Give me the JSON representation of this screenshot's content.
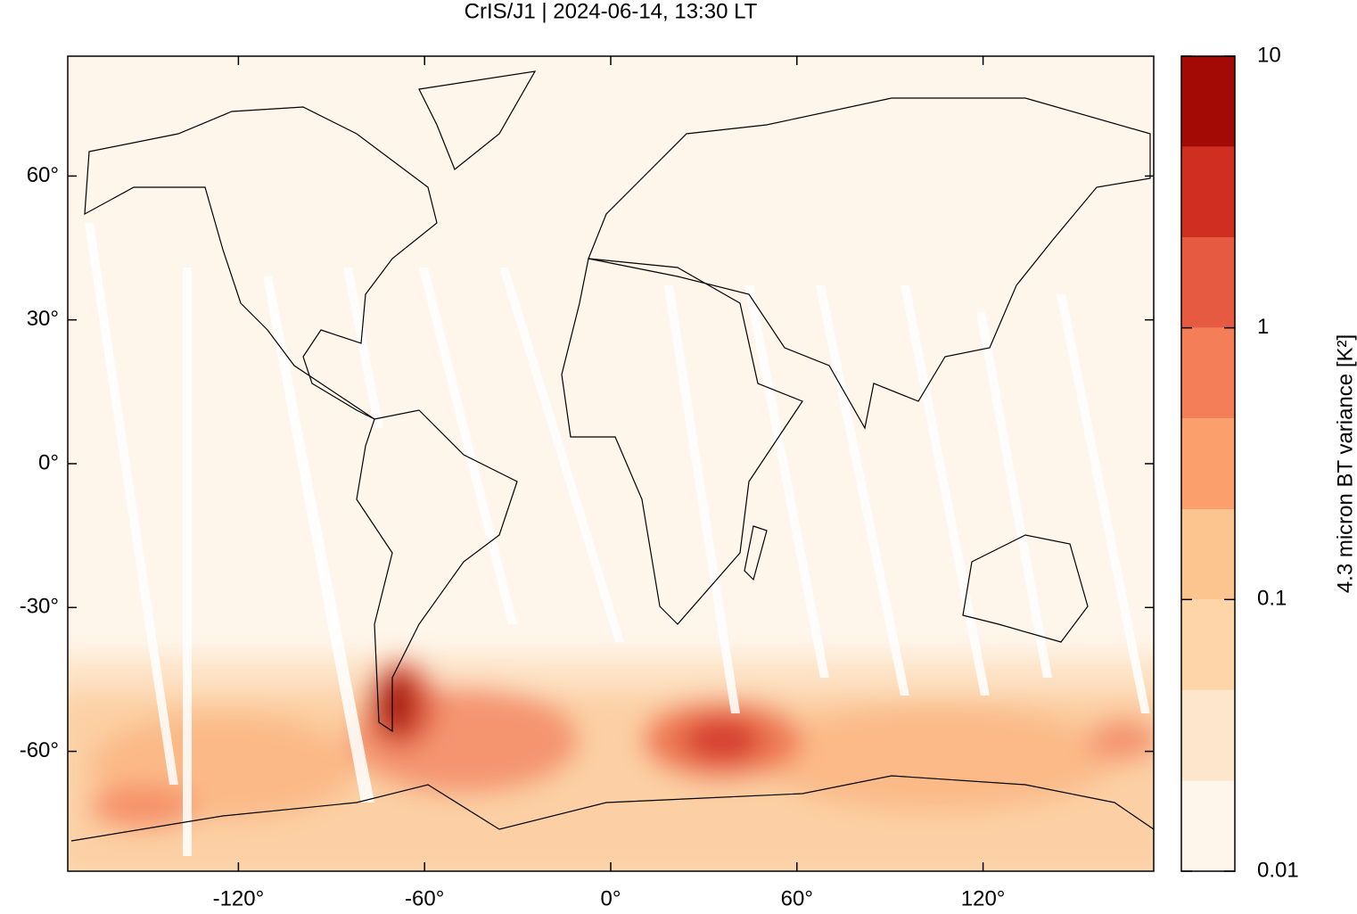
{
  "chart_data": {
    "type": "map",
    "title": "CrIS/J1 | 2024-06-14, 13:30 LT",
    "xlim": [
      -175,
      175
    ],
    "ylim": [
      -85,
      85
    ],
    "xticks": [
      {
        "value": -120,
        "label": "-120°"
      },
      {
        "value": -60,
        "label": "-60°"
      },
      {
        "value": 0,
        "label": "0°"
      },
      {
        "value": 60,
        "label": "60°"
      },
      {
        "value": 120,
        "label": "120°"
      }
    ],
    "yticks": [
      {
        "value": 60,
        "label": "60°"
      },
      {
        "value": 30,
        "label": "30°"
      },
      {
        "value": 0,
        "label": "0°"
      },
      {
        "value": -30,
        "label": "-30°"
      },
      {
        "value": -60,
        "label": "-60°"
      }
    ],
    "colorbar": {
      "label": "4.3 micron BT variance [K²]",
      "log": true,
      "lim": [
        0.01,
        10
      ],
      "ticks": [
        0.01,
        0.1,
        1,
        10
      ],
      "levels": [
        0.01,
        0.0215,
        0.0464,
        0.1,
        0.215,
        0.464,
        1,
        2.15,
        4.64,
        10
      ],
      "colors": [
        "#fef5eb",
        "#fde6cc",
        "#fdd5a8",
        "#fcc48f",
        "#fba06c",
        "#f47e58",
        "#e65a41",
        "#cf2e21",
        "#a30a06"
      ]
    }
  }
}
